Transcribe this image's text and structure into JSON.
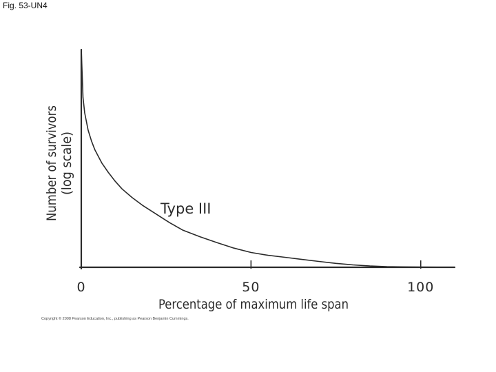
{
  "figure_label": "Fig. 53-UN4",
  "copyright": "Copyright © 2008 Pearson Education, Inc., publishing as Pearson Benjamin Cummings.",
  "chart_data": {
    "type": "line",
    "title": "",
    "xlabel": "Percentage of maximum life span",
    "ylabel_line1": "Number of survivors",
    "ylabel_line2": "(log scale)",
    "xlim": [
      0,
      110
    ],
    "x_ticks": [
      {
        "value": 0,
        "label": "0"
      },
      {
        "value": 50,
        "label": "50"
      },
      {
        "value": 100,
        "label": "100"
      }
    ],
    "y_scale": "log",
    "y_tick_labels": [],
    "grid": false,
    "legend": "none",
    "annotations": [
      {
        "text": "Type III"
      }
    ],
    "series": [
      {
        "x": [
          0,
          0.5,
          1,
          2,
          3,
          4,
          6,
          8,
          10,
          12,
          15,
          18,
          22,
          26,
          30,
          35,
          40,
          45,
          50,
          55,
          60,
          65,
          70,
          75,
          80,
          85,
          90,
          95,
          100,
          105,
          110
        ],
        "y": [
          1.0,
          0.78,
          0.71,
          0.63,
          0.58,
          0.54,
          0.48,
          0.435,
          0.395,
          0.36,
          0.32,
          0.285,
          0.245,
          0.205,
          0.17,
          0.14,
          0.113,
          0.088,
          0.068,
          0.055,
          0.046,
          0.036,
          0.027,
          0.018,
          0.011,
          0.006,
          0.003,
          0.002,
          0.001,
          0.0005,
          0.0003
        ]
      }
    ],
    "colors": {
      "line": "#2a2a2a",
      "axis": "#2a2a2a"
    }
  }
}
